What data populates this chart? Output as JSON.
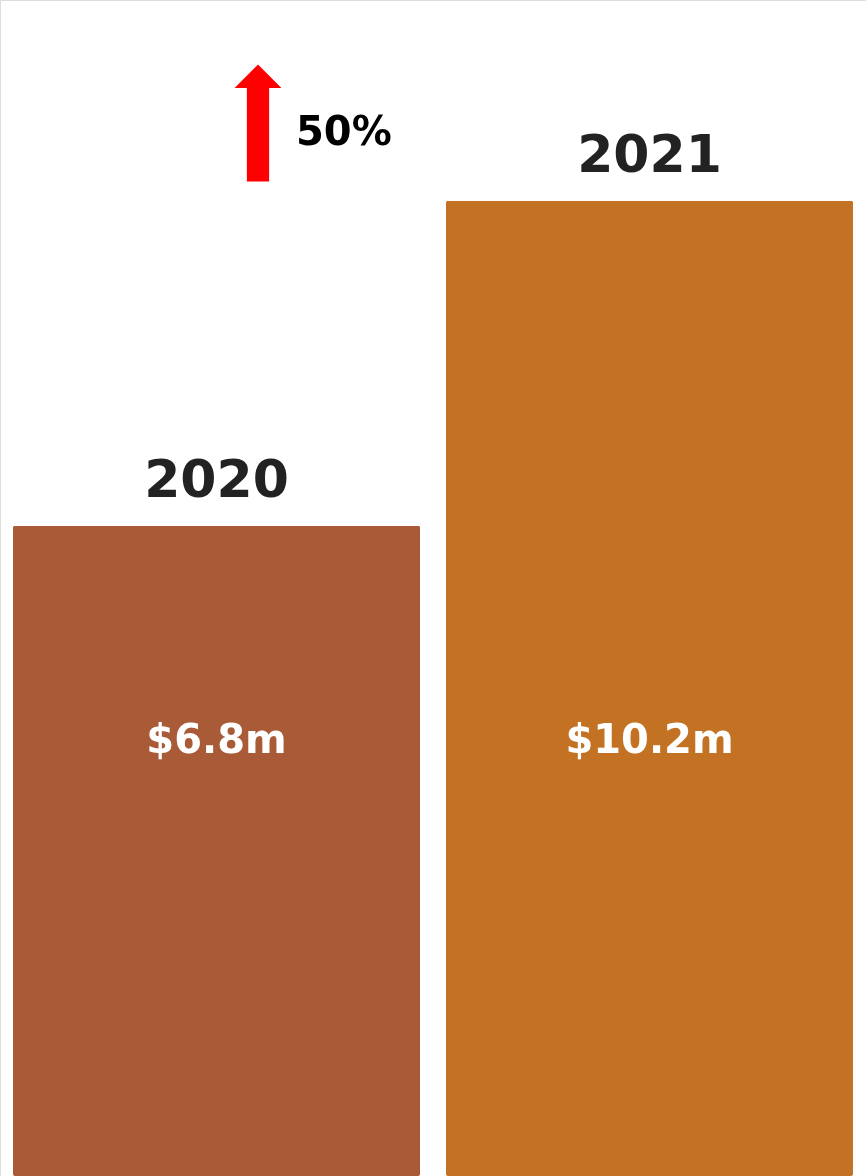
{
  "chart_data": {
    "type": "bar",
    "categories": [
      "2020",
      "2021"
    ],
    "values": [
      6.8,
      10.2
    ],
    "colors": [
      "#a95a37",
      "#c37224"
    ],
    "value_labels": [
      "$6.8m",
      "$10.2m"
    ],
    "ylim": [
      0,
      12.3
    ],
    "tick_labels": false,
    "grid": false,
    "annotations": [
      "50%"
    ]
  }
}
